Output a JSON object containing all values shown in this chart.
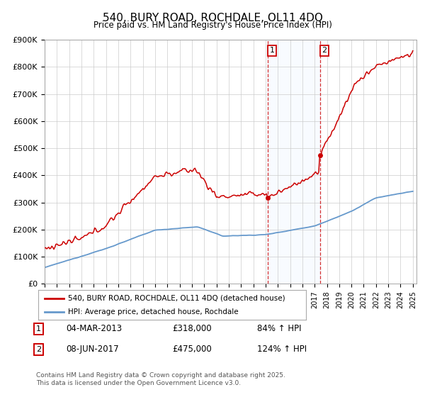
{
  "title": "540, BURY ROAD, ROCHDALE, OL11 4DQ",
  "subtitle": "Price paid vs. HM Land Registry's House Price Index (HPI)",
  "red_line_color": "#cc0000",
  "blue_line_color": "#6699cc",
  "shade_color": "#ddeeff",
  "ylim": [
    0,
    900000
  ],
  "ytick_labels": [
    "£0",
    "£100K",
    "£200K",
    "£300K",
    "£400K",
    "£500K",
    "£600K",
    "£700K",
    "£800K",
    "£900K"
  ],
  "ytick_values": [
    0,
    100000,
    200000,
    300000,
    400000,
    500000,
    600000,
    700000,
    800000,
    900000
  ],
  "transaction1_date": "04-MAR-2013",
  "transaction1_price": 318000,
  "transaction1_pct": "84%",
  "transaction1_year": 2013.17,
  "transaction2_date": "08-JUN-2017",
  "transaction2_price": 475000,
  "transaction2_year": 2017.44,
  "transaction2_pct": "124%",
  "legend_red": "540, BURY ROAD, ROCHDALE, OL11 4DQ (detached house)",
  "legend_blue": "HPI: Average price, detached house, Rochdale",
  "footer": "Contains HM Land Registry data © Crown copyright and database right 2025.\nThis data is licensed under the Open Government Licence v3.0.",
  "background_color": "#ffffff",
  "grid_color": "#cccccc"
}
